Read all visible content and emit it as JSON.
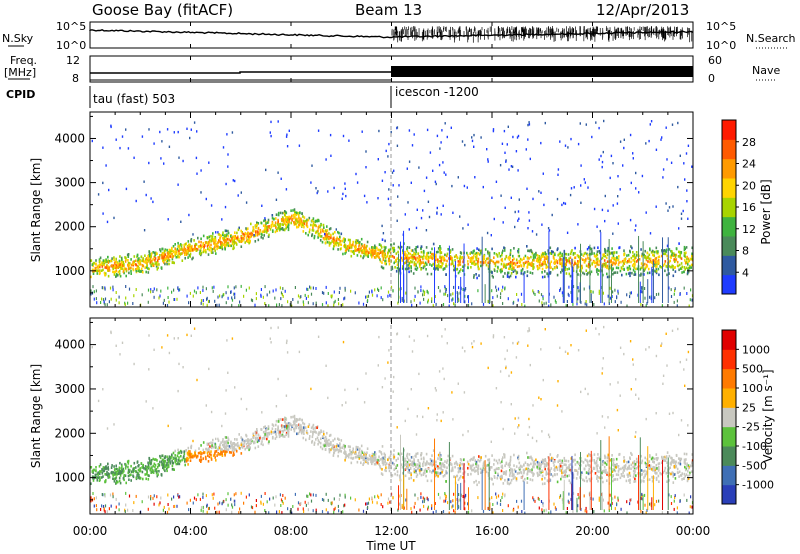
{
  "header": {
    "title_left": "Goose Bay (fitACF)",
    "title_center": "Beam 13",
    "title_right": "12/Apr/2013"
  },
  "colors": {
    "power_scale": [
      "#1f3cff",
      "#2f5aa0",
      "#4a8a5a",
      "#3fb33f",
      "#a8d400",
      "#ffd400",
      "#ff9a00",
      "#ff5a00",
      "#ff1a00"
    ],
    "velocity_scale": [
      "#2a3fb8",
      "#3f6fb5",
      "#4b8a5a",
      "#5cc23c",
      "#c8c8c0",
      "#ffb000",
      "#ff7a00",
      "#ff3000",
      "#e00000"
    ]
  },
  "noise_panel": {
    "left_label": "N.Sky",
    "right_label": "N.Search",
    "left_ticks": [
      "10^5",
      "10^0"
    ],
    "right_ticks": [
      "10^5",
      "10^0"
    ]
  },
  "freq_panel": {
    "left_label_top": "Freq.",
    "left_label_bottom": "[MHz]",
    "right_label": "Nave",
    "left_ticks": [
      "12",
      "8"
    ],
    "right_ticks": [
      "60",
      "0"
    ]
  },
  "cpid": {
    "label": "CPID",
    "segments": [
      {
        "start_hour": 0,
        "name": "tau (fast) 503"
      },
      {
        "start_hour": 12,
        "name": "icescon -1200"
      }
    ]
  },
  "chart_data": [
    {
      "type": "heatmap",
      "panel": "power",
      "ylabel": "Slant Range [km]",
      "ylim": [
        180,
        4600
      ],
      "y_ticks": [
        1000,
        2000,
        3000,
        4000
      ],
      "xlim": [
        0,
        24
      ],
      "x_ticks": [
        "00:00",
        "04:00",
        "08:00",
        "12:00",
        "16:00",
        "20:00",
        "00:00"
      ],
      "colorbar_label": "Power [dB]",
      "colorbar_ticks": [
        "28",
        "24",
        "20",
        "16",
        "12",
        "8",
        "4"
      ],
      "colorbar_range": [
        0,
        30
      ],
      "features": [
        {
          "name": "main-band",
          "t_start": 0,
          "t_end": 24,
          "range_profile": [
            [
              0,
              1050
            ],
            [
              2,
              1150
            ],
            [
              4,
              1500
            ],
            [
              6,
              1750
            ],
            [
              8,
              2200
            ],
            [
              9,
              1950
            ],
            [
              10,
              1600
            ],
            [
              12,
              1300
            ],
            [
              16,
              1200
            ],
            [
              20,
              1200
            ],
            [
              24,
              1250
            ]
          ]
        }
      ]
    },
    {
      "type": "heatmap",
      "panel": "velocity",
      "ylabel": "Slant Range [km]",
      "ylim": [
        180,
        4600
      ],
      "y_ticks": [
        1000,
        2000,
        3000,
        4000
      ],
      "xlim": [
        0,
        24
      ],
      "x_ticks": [
        "00:00",
        "04:00",
        "08:00",
        "12:00",
        "16:00",
        "20:00",
        "00:00"
      ],
      "xlabel": "Time UT",
      "colorbar_label": "Velocity [m s⁻¹]",
      "colorbar_ticks": [
        "1000",
        "500",
        "100",
        "25",
        "-25",
        "-100",
        "-500",
        "-1000"
      ],
      "colorbar_range": [
        -1000,
        1000
      ]
    }
  ]
}
